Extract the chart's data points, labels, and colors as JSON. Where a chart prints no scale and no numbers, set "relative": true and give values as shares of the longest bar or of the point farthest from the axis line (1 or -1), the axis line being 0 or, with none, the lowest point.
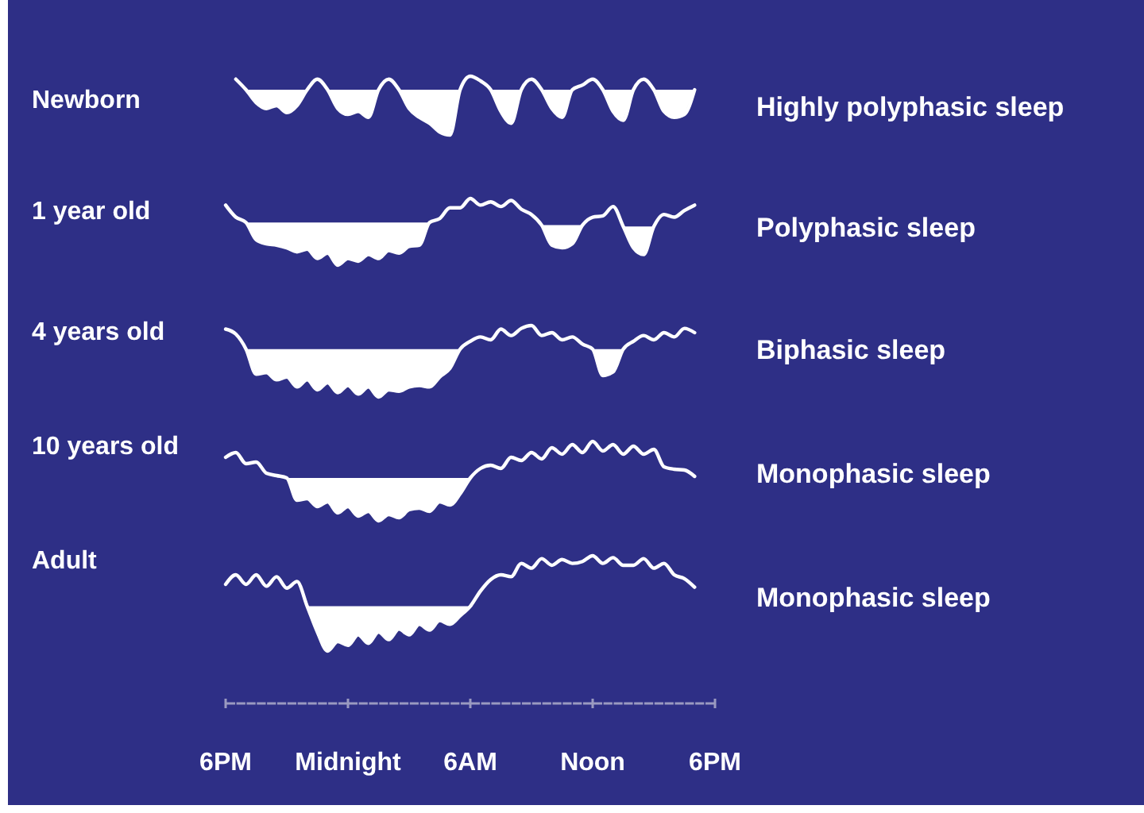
{
  "chart_data": [
    {
      "type": "line",
      "relative": true,
      "title": "Newborn",
      "annotations": [
        "Highly polyphasic sleep"
      ],
      "tick_labels": false,
      "grid": false,
      "marker": "none",
      "line_style": "solid",
      "categories": [
        null,
        null,
        null,
        null,
        null,
        null,
        null,
        null,
        null,
        null,
        null,
        null,
        null,
        null,
        null,
        null,
        null,
        null,
        null,
        null,
        null,
        null,
        null,
        null,
        null,
        null,
        null,
        null,
        null,
        null,
        null,
        null,
        null,
        null,
        null,
        null,
        null,
        null,
        null,
        null,
        null,
        null,
        null,
        null,
        null,
        null,
        null,
        null,
        null
      ],
      "series": [
        {
          "color": "#ffffff",
          "values": [
            null,
            0.95,
            0.77,
            0.55,
            0.45,
            0.5,
            0.38,
            0.5,
            0.77,
            0.95,
            0.77,
            0.45,
            0.35,
            0.4,
            0.3,
            0.77,
            0.95,
            0.77,
            0.45,
            0.3,
            0.2,
            0.05,
            0,
            0.77,
            1,
            0.92,
            0.77,
            0.4,
            0.2,
            0.77,
            0.95,
            0.77,
            0.45,
            0.3,
            0.77,
            0.85,
            0.95,
            0.77,
            0.4,
            0.25,
            0.77,
            0.95,
            0.77,
            0.4,
            0.3,
            0.35,
            0.77,
            null,
            null
          ],
          "upper": [
            null,
            null,
            0.77,
            0.77,
            0.77,
            0.77,
            0.77,
            0.77,
            0.77,
            null,
            0.77,
            0.77,
            0.77,
            0.77,
            0.77,
            0.77,
            null,
            0.77,
            0.77,
            0.77,
            0.77,
            0.77,
            0.77,
            0.77,
            null,
            null,
            0.77,
            0.77,
            0.77,
            0.77,
            null,
            0.77,
            0.77,
            0.77,
            0.77,
            null,
            null,
            0.77,
            0.77,
            0.77,
            0.77,
            null,
            0.77,
            0.77,
            0.77,
            0.77,
            0.77,
            null,
            null
          ],
          "lower": [
            null,
            null,
            0.77,
            0.55,
            0.45,
            0.5,
            0.38,
            0.5,
            0.77,
            null,
            0.77,
            0.45,
            0.35,
            0.4,
            0.3,
            0.77,
            null,
            0.77,
            0.45,
            0.3,
            0.2,
            0.05,
            0,
            0.77,
            null,
            null,
            0.77,
            0.4,
            0.2,
            0.77,
            null,
            0.77,
            0.45,
            0.3,
            0.77,
            null,
            null,
            0.77,
            0.4,
            0.25,
            0.77,
            null,
            0.77,
            0.4,
            0.3,
            0.35,
            0.77,
            null,
            null
          ]
        }
      ]
    },
    {
      "type": "line",
      "relative": true,
      "title": "1 year old",
      "annotations": [
        "Polyphasic sleep"
      ],
      "tick_labels": false,
      "grid": false,
      "marker": "none",
      "line_style": "solid",
      "categories": [
        null,
        null,
        null,
        null,
        null,
        null,
        null,
        null,
        null,
        null,
        null,
        null,
        null,
        null,
        null,
        null,
        null,
        null,
        null,
        null,
        null,
        null,
        null,
        null,
        null,
        null,
        null,
        null,
        null,
        null,
        null,
        null,
        null,
        null,
        null,
        null,
        null,
        null,
        null,
        null,
        null,
        null,
        null,
        null,
        null,
        null,
        null,
        null,
        null
      ],
      "series": [
        {
          "color": "#ffffff",
          "values": [
            0.9,
            0.72,
            0.64,
            0.38,
            0.32,
            0.3,
            0.26,
            0.2,
            0.24,
            0.1,
            0.18,
            0,
            0.1,
            0.06,
            0.16,
            0.1,
            0.22,
            0.18,
            0.28,
            0.3,
            0.64,
            0.7,
            0.86,
            0.86,
            1,
            0.9,
            0.95,
            0.88,
            0.97,
            0.84,
            0.76,
            0.6,
            0.3,
            0.26,
            0.32,
            0.6,
            0.72,
            0.74,
            0.88,
            0.58,
            0.26,
            0.16,
            0.58,
            0.76,
            0.72,
            0.82,
            0.9,
            null,
            null
          ],
          "upper": [
            null,
            null,
            0.64,
            0.64,
            0.64,
            0.64,
            0.64,
            0.64,
            0.64,
            0.64,
            0.64,
            0.64,
            0.64,
            0.64,
            0.64,
            0.64,
            0.64,
            0.64,
            0.64,
            0.64,
            0.64,
            null,
            null,
            null,
            null,
            null,
            null,
            null,
            null,
            null,
            null,
            0.6,
            0.6,
            0.6,
            0.6,
            0.6,
            null,
            null,
            null,
            0.58,
            0.58,
            0.58,
            0.58,
            null,
            null,
            null,
            null,
            null,
            null
          ],
          "lower": [
            null,
            null,
            0.64,
            0.38,
            0.32,
            0.3,
            0.26,
            0.2,
            0.24,
            0.1,
            0.18,
            0,
            0.1,
            0.06,
            0.16,
            0.1,
            0.22,
            0.18,
            0.28,
            0.3,
            0.64,
            null,
            null,
            null,
            null,
            null,
            null,
            null,
            null,
            null,
            null,
            0.6,
            0.3,
            0.26,
            0.32,
            0.6,
            null,
            null,
            null,
            0.58,
            0.26,
            0.16,
            0.58,
            null,
            null,
            null,
            null,
            null,
            null
          ]
        }
      ]
    },
    {
      "type": "line",
      "relative": true,
      "title": "4 years old",
      "annotations": [
        "Biphasic sleep"
      ],
      "tick_labels": false,
      "grid": false,
      "marker": "none",
      "line_style": "solid",
      "categories": [
        null,
        null,
        null,
        null,
        null,
        null,
        null,
        null,
        null,
        null,
        null,
        null,
        null,
        null,
        null,
        null,
        null,
        null,
        null,
        null,
        null,
        null,
        null,
        null,
        null,
        null,
        null,
        null,
        null,
        null,
        null,
        null,
        null,
        null,
        null,
        null,
        null,
        null,
        null,
        null,
        null,
        null,
        null,
        null,
        null,
        null,
        null,
        null,
        null
      ],
      "series": [
        {
          "color": "#ffffff",
          "values": [
            0.95,
            0.88,
            0.67,
            0.32,
            0.34,
            0.24,
            0.28,
            0.14,
            0.24,
            0.1,
            0.2,
            0.06,
            0.16,
            0.04,
            0.14,
            0,
            0.1,
            0.08,
            0.14,
            0.16,
            0.14,
            0.28,
            0.4,
            0.67,
            0.78,
            0.84,
            0.8,
            0.95,
            0.86,
            0.96,
            1,
            0.86,
            0.9,
            0.8,
            0.84,
            0.74,
            0.67,
            0.3,
            0.35,
            0.67,
            0.78,
            0.86,
            0.8,
            0.9,
            0.84,
            0.96,
            0.9,
            null,
            null
          ],
          "upper": [
            null,
            null,
            0.67,
            0.67,
            0.67,
            0.67,
            0.67,
            0.67,
            0.67,
            0.67,
            0.67,
            0.67,
            0.67,
            0.67,
            0.67,
            0.67,
            0.67,
            0.67,
            0.67,
            0.67,
            0.67,
            0.67,
            0.67,
            0.67,
            null,
            null,
            null,
            null,
            null,
            null,
            null,
            null,
            null,
            null,
            null,
            null,
            0.67,
            0.67,
            0.67,
            0.67,
            null,
            null,
            null,
            null,
            null,
            null,
            null,
            null,
            null
          ],
          "lower": [
            null,
            null,
            0.67,
            0.32,
            0.34,
            0.24,
            0.28,
            0.14,
            0.24,
            0.1,
            0.2,
            0.06,
            0.16,
            0.04,
            0.14,
            0,
            0.1,
            0.08,
            0.14,
            0.16,
            0.14,
            0.28,
            0.4,
            0.67,
            null,
            null,
            null,
            null,
            null,
            null,
            null,
            null,
            null,
            null,
            null,
            null,
            0.67,
            0.3,
            0.35,
            0.67,
            null,
            null,
            null,
            null,
            null,
            null,
            null,
            null,
            null
          ]
        }
      ]
    },
    {
      "type": "line",
      "relative": true,
      "title": "10 years old",
      "annotations": [
        "Monophasic sleep"
      ],
      "tick_labels": false,
      "grid": false,
      "marker": "none",
      "line_style": "solid",
      "categories": [
        null,
        null,
        null,
        null,
        null,
        null,
        null,
        null,
        null,
        null,
        null,
        null,
        null,
        null,
        null,
        null,
        null,
        null,
        null,
        null,
        null,
        null,
        null,
        null,
        null,
        null,
        null,
        null,
        null,
        null,
        null,
        null,
        null,
        null,
        null,
        null,
        null,
        null,
        null,
        null,
        null,
        null,
        null,
        null,
        null,
        null,
        null,
        null,
        null
      ],
      "series": [
        {
          "color": "#ffffff",
          "values": [
            0.8,
            0.86,
            0.72,
            0.74,
            0.6,
            0.57,
            0.54,
            0.26,
            0.28,
            0.18,
            0.24,
            0.1,
            0.18,
            0.06,
            0.12,
            0,
            0.08,
            0.04,
            0.14,
            0.16,
            0.12,
            0.24,
            0.2,
            0.34,
            0.54,
            0.66,
            0.7,
            0.66,
            0.8,
            0.76,
            0.86,
            0.78,
            0.92,
            0.84,
            0.96,
            0.86,
            1,
            0.88,
            0.96,
            0.84,
            0.94,
            0.84,
            0.9,
            0.68,
            0.65,
            0.64,
            0.56,
            null,
            null
          ],
          "upper": [
            null,
            null,
            null,
            null,
            null,
            null,
            0.54,
            0.54,
            0.54,
            0.54,
            0.54,
            0.54,
            0.54,
            0.54,
            0.54,
            0.54,
            0.54,
            0.54,
            0.54,
            0.54,
            0.54,
            0.54,
            0.54,
            0.54,
            0.54,
            null,
            null,
            null,
            null,
            null,
            null,
            null,
            null,
            null,
            null,
            null,
            null,
            null,
            null,
            null,
            null,
            null,
            null,
            null,
            null,
            null,
            null,
            null,
            null
          ],
          "lower": [
            null,
            null,
            null,
            null,
            null,
            null,
            0.54,
            0.26,
            0.28,
            0.18,
            0.24,
            0.1,
            0.18,
            0.06,
            0.12,
            0,
            0.08,
            0.04,
            0.14,
            0.16,
            0.12,
            0.24,
            0.2,
            0.34,
            0.54,
            null,
            null,
            null,
            null,
            null,
            null,
            null,
            null,
            null,
            null,
            null,
            null,
            null,
            null,
            null,
            null,
            null,
            null,
            null,
            null,
            null,
            null,
            null,
            null
          ]
        }
      ]
    },
    {
      "type": "line",
      "relative": true,
      "title": "Adult",
      "annotations": [
        "Monophasic sleep"
      ],
      "grid": false,
      "marker": "none",
      "line_style": "solid",
      "categories": [
        "6PM",
        null,
        null,
        null,
        null,
        null,
        null,
        null,
        null,
        null,
        null,
        null,
        "Midnight",
        null,
        null,
        null,
        null,
        null,
        null,
        null,
        null,
        null,
        null,
        null,
        "6AM",
        null,
        null,
        null,
        null,
        null,
        null,
        null,
        null,
        null,
        null,
        null,
        "Noon",
        null,
        null,
        null,
        null,
        null,
        null,
        null,
        null,
        null,
        null,
        null,
        "6PM"
      ],
      "series": [
        {
          "color": "#ffffff",
          "values": [
            0.7,
            0.8,
            0.7,
            0.8,
            0.68,
            0.78,
            0.66,
            0.73,
            0.47,
            0.2,
            0,
            0.1,
            0.06,
            0.17,
            0.08,
            0.2,
            0.12,
            0.23,
            0.17,
            0.28,
            0.22,
            0.32,
            0.28,
            0.37,
            0.47,
            0.63,
            0.75,
            0.8,
            0.78,
            0.92,
            0.87,
            0.97,
            0.9,
            0.96,
            0.92,
            0.94,
            1,
            0.92,
            0.98,
            0.9,
            0.9,
            0.97,
            0.87,
            0.92,
            0.8,
            0.76,
            0.67,
            null,
            null
          ],
          "upper": [
            null,
            null,
            null,
            null,
            null,
            null,
            null,
            null,
            0.47,
            0.47,
            0.47,
            0.47,
            0.47,
            0.47,
            0.47,
            0.47,
            0.47,
            0.47,
            0.47,
            0.47,
            0.47,
            0.47,
            0.47,
            0.47,
            0.47,
            null,
            null,
            null,
            null,
            null,
            null,
            null,
            null,
            null,
            null,
            null,
            null,
            null,
            null,
            null,
            null,
            null,
            null,
            null,
            null,
            null,
            null,
            null,
            null
          ],
          "lower": [
            null,
            null,
            null,
            null,
            null,
            null,
            null,
            null,
            0.47,
            0.2,
            0,
            0.1,
            0.06,
            0.17,
            0.08,
            0.2,
            0.12,
            0.23,
            0.17,
            0.28,
            0.22,
            0.32,
            0.28,
            0.37,
            0.47,
            null,
            null,
            null,
            null,
            null,
            null,
            null,
            null,
            null,
            null,
            null,
            null,
            null,
            null,
            null,
            null,
            null,
            null,
            null,
            null,
            null,
            null,
            null,
            null
          ]
        }
      ]
    }
  ]
}
